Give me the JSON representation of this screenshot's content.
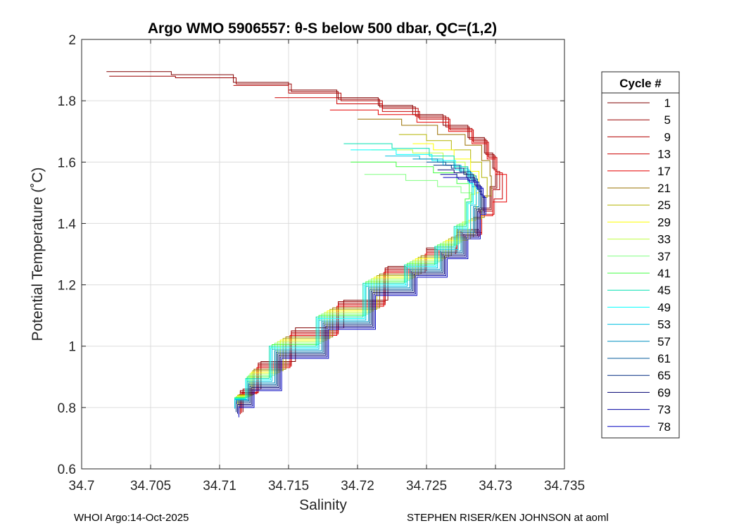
{
  "chart_data": {
    "type": "line",
    "title": "Argo WMO 5906557: θ-S below 500 dbar,  QC=(1,2)",
    "xlabel": "Salinity",
    "ylabel": "Potential Temperature (˚C)",
    "xlim": [
      34.7,
      34.735
    ],
    "ylim": [
      0.6,
      2.0
    ],
    "xticks": [
      "34.7",
      "34.705",
      "34.71",
      "34.715",
      "34.72",
      "34.725",
      "34.73",
      "34.735"
    ],
    "xtick_values": [
      34.7,
      34.705,
      34.71,
      34.715,
      34.72,
      34.725,
      34.73,
      34.735
    ],
    "yticks": [
      "0.6",
      "0.8",
      "1",
      "1.2",
      "1.4",
      "1.6",
      "1.8",
      "2"
    ],
    "ytick_values": [
      0.6,
      0.8,
      1.0,
      1.2,
      1.4,
      1.6,
      1.8,
      2.0
    ],
    "grid": true,
    "legend_title": "Cycle #",
    "legend_position": "right-outside",
    "series": [
      {
        "name": "1",
        "color": "#800000",
        "x": [
          34.7018,
          34.7065,
          34.711,
          34.715,
          34.7185,
          34.7215,
          34.724,
          34.7262,
          34.728,
          34.7292,
          34.7298,
          34.73,
          34.7296,
          34.7288,
          34.7272,
          34.725,
          34.7222,
          34.719,
          34.7155,
          34.713,
          34.7117
        ],
        "y": [
          1.895,
          1.885,
          1.86,
          1.835,
          1.81,
          1.785,
          1.755,
          1.72,
          1.68,
          1.63,
          1.58,
          1.52,
          1.45,
          1.38,
          1.32,
          1.26,
          1.15,
          1.06,
          0.95,
          0.86,
          0.785
        ]
      },
      {
        "name": "5",
        "color": "#9a0000",
        "x": [
          34.702,
          34.7068,
          34.7112,
          34.7152,
          34.7186,
          34.7216,
          34.7242,
          34.7264,
          34.7281,
          34.7293,
          34.7299,
          34.7301,
          34.7297,
          34.7289,
          34.7272,
          34.725,
          34.722,
          34.7186,
          34.7152,
          34.7128,
          34.7115
        ],
        "y": [
          1.88,
          1.875,
          1.855,
          1.83,
          1.805,
          1.78,
          1.75,
          1.715,
          1.675,
          1.625,
          1.575,
          1.515,
          1.445,
          1.375,
          1.315,
          1.255,
          1.145,
          1.05,
          0.945,
          0.855,
          0.78
        ]
      },
      {
        "name": "9",
        "color": "#b30000",
        "x": [
          34.711,
          34.715,
          34.7188,
          34.7218,
          34.7244,
          34.7266,
          34.7283,
          34.7294,
          34.73,
          34.7303,
          34.7298,
          34.729,
          34.7272,
          34.725,
          34.722,
          34.7186,
          34.7152,
          34.7128,
          34.7115
        ],
        "y": [
          1.85,
          1.825,
          1.8,
          1.775,
          1.745,
          1.71,
          1.67,
          1.62,
          1.57,
          1.51,
          1.44,
          1.37,
          1.31,
          1.25,
          1.14,
          1.045,
          0.94,
          0.85,
          0.778
        ]
      },
      {
        "name": "13",
        "color": "#cc0000",
        "x": [
          34.714,
          34.7185,
          34.7218,
          34.7245,
          34.7267,
          34.7284,
          34.7295,
          34.7301,
          34.7305,
          34.7299,
          34.729,
          34.7272,
          34.725,
          34.722,
          34.7186,
          34.7152,
          34.7128,
          34.7116
        ],
        "y": [
          1.81,
          1.79,
          1.765,
          1.74,
          1.705,
          1.665,
          1.615,
          1.565,
          1.48,
          1.43,
          1.365,
          1.305,
          1.245,
          1.135,
          1.04,
          0.935,
          0.848,
          0.782
        ]
      },
      {
        "name": "17",
        "color": "#e60000",
        "x": [
          34.718,
          34.7215,
          34.7243,
          34.7266,
          34.7283,
          34.7294,
          34.73,
          34.7308,
          34.7298,
          34.7289,
          34.7271,
          34.7249,
          34.7219,
          34.7185,
          34.7151,
          34.7127,
          34.7116
        ],
        "y": [
          1.77,
          1.755,
          1.73,
          1.7,
          1.66,
          1.61,
          1.56,
          1.47,
          1.425,
          1.36,
          1.3,
          1.24,
          1.13,
          1.035,
          0.93,
          0.845,
          0.785
        ]
      },
      {
        "name": "21",
        "color": "#9a7000",
        "x": [
          34.72,
          34.7232,
          34.7258,
          34.7278,
          34.729,
          34.7296,
          34.7297,
          34.7292,
          34.7284,
          34.7268,
          34.7246,
          34.7216,
          34.7182,
          34.7148,
          34.7125,
          34.7114
        ],
        "y": [
          1.74,
          1.72,
          1.69,
          1.655,
          1.605,
          1.555,
          1.49,
          1.42,
          1.355,
          1.295,
          1.235,
          1.125,
          1.03,
          0.925,
          0.842,
          0.788
        ]
      },
      {
        "name": "25",
        "color": "#b3b300",
        "x": [
          34.723,
          34.725,
          34.7268,
          34.7282,
          34.729,
          34.7294,
          34.729,
          34.7282,
          34.7266,
          34.7244,
          34.7214,
          34.718,
          34.7146,
          34.7124,
          34.7113
        ],
        "y": [
          1.69,
          1.67,
          1.64,
          1.6,
          1.55,
          1.485,
          1.415,
          1.35,
          1.29,
          1.23,
          1.12,
          1.025,
          0.92,
          0.84,
          0.79
        ]
      },
      {
        "name": "29",
        "color": "#ffff00",
        "x": [
          34.724,
          34.7255,
          34.727,
          34.7282,
          34.7288,
          34.7286,
          34.728,
          34.7264,
          34.7242,
          34.7212,
          34.7178,
          34.7144,
          34.7123,
          34.7113
        ],
        "y": [
          1.66,
          1.64,
          1.61,
          1.57,
          1.5,
          1.41,
          1.345,
          1.285,
          1.225,
          1.115,
          1.02,
          0.915,
          0.838,
          0.792
        ]
      },
      {
        "name": "33",
        "color": "#bfff40",
        "x": [
          34.721,
          34.724,
          34.7262,
          34.7278,
          34.7285,
          34.7282,
          34.7276,
          34.7262,
          34.724,
          34.721,
          34.7176,
          34.7142,
          34.7122,
          34.7112
        ],
        "y": [
          1.64,
          1.63,
          1.6,
          1.56,
          1.495,
          1.405,
          1.34,
          1.28,
          1.22,
          1.11,
          1.015,
          0.91,
          0.836,
          0.795
        ]
      },
      {
        "name": "37",
        "color": "#80ff80",
        "x": [
          34.7205,
          34.7235,
          34.7258,
          34.7275,
          34.7283,
          34.728,
          34.7274,
          34.726,
          34.7238,
          34.7208,
          34.7174,
          34.714,
          34.7121,
          34.7112
        ],
        "y": [
          1.56,
          1.54,
          1.52,
          1.5,
          1.47,
          1.4,
          1.335,
          1.275,
          1.215,
          1.105,
          1.01,
          0.905,
          0.834,
          0.798
        ]
      },
      {
        "name": "41",
        "color": "#40ff40",
        "x": [
          34.7195,
          34.7228,
          34.7255,
          34.7272,
          34.7281,
          34.7278,
          34.7272,
          34.7258,
          34.7236,
          34.7206,
          34.7172,
          34.7138,
          34.712,
          34.7111
        ],
        "y": [
          1.6,
          1.585,
          1.565,
          1.53,
          1.48,
          1.395,
          1.33,
          1.27,
          1.21,
          1.1,
          1.005,
          0.9,
          0.832,
          0.8
        ]
      },
      {
        "name": "45",
        "color": "#00e0b0",
        "x": [
          34.719,
          34.7225,
          34.7252,
          34.727,
          34.728,
          34.7283,
          34.7279,
          34.727,
          34.7256,
          34.7234,
          34.7204,
          34.717,
          34.7136,
          34.7119,
          34.7111
        ],
        "y": [
          1.66,
          1.645,
          1.62,
          1.585,
          1.535,
          1.47,
          1.39,
          1.325,
          1.265,
          1.205,
          1.095,
          1.0,
          0.895,
          0.83,
          0.8
        ]
      },
      {
        "name": "49",
        "color": "#00ffff",
        "x": [
          34.7195,
          34.7228,
          34.7254,
          34.7271,
          34.7281,
          34.7284,
          34.728,
          34.7271,
          34.7257,
          34.7235,
          34.7205,
          34.7171,
          34.7137,
          34.7119,
          34.7111
        ],
        "y": [
          1.64,
          1.625,
          1.605,
          1.575,
          1.53,
          1.465,
          1.385,
          1.32,
          1.26,
          1.2,
          1.09,
          0.995,
          0.89,
          0.828,
          0.798
        ]
      },
      {
        "name": "53",
        "color": "#00c0e0",
        "x": [
          34.722,
          34.7245,
          34.7262,
          34.7275,
          34.7283,
          34.7286,
          34.7282,
          34.7273,
          34.7258,
          34.7236,
          34.7206,
          34.7172,
          34.7138,
          34.712,
          34.7111
        ],
        "y": [
          1.62,
          1.61,
          1.59,
          1.565,
          1.52,
          1.46,
          1.38,
          1.315,
          1.255,
          1.195,
          1.085,
          0.99,
          0.885,
          0.826,
          0.796
        ]
      },
      {
        "name": "57",
        "color": "#0090c0",
        "x": [
          34.724,
          34.7258,
          34.727,
          34.728,
          34.7286,
          34.7288,
          34.7284,
          34.7275,
          34.726,
          34.7238,
          34.7208,
          34.7174,
          34.714,
          34.7121,
          34.7112
        ],
        "y": [
          1.61,
          1.6,
          1.58,
          1.555,
          1.515,
          1.455,
          1.375,
          1.31,
          1.25,
          1.19,
          1.08,
          0.985,
          0.88,
          0.824,
          0.794
        ]
      },
      {
        "name": "61",
        "color": "#005a9a",
        "x": [
          34.725,
          34.7264,
          34.7274,
          34.7282,
          34.7287,
          34.7289,
          34.7285,
          34.7276,
          34.7261,
          34.7239,
          34.7209,
          34.7175,
          34.7141,
          34.7121,
          34.7112
        ],
        "y": [
          1.6,
          1.59,
          1.57,
          1.545,
          1.51,
          1.45,
          1.37,
          1.305,
          1.245,
          1.185,
          1.075,
          0.98,
          0.875,
          0.82,
          0.79
        ]
      },
      {
        "name": "65",
        "color": "#002a80",
        "x": [
          34.7255,
          34.7268,
          34.7277,
          34.7284,
          34.7288,
          34.729,
          34.7286,
          34.7277,
          34.7262,
          34.724,
          34.721,
          34.7176,
          34.7142,
          34.7122,
          34.7112
        ],
        "y": [
          1.59,
          1.58,
          1.56,
          1.535,
          1.505,
          1.445,
          1.365,
          1.3,
          1.24,
          1.18,
          1.07,
          0.975,
          0.87,
          0.815,
          0.785
        ]
      },
      {
        "name": "69",
        "color": "#000070",
        "x": [
          34.7258,
          34.727,
          34.7279,
          34.7285,
          34.7289,
          34.7291,
          34.7287,
          34.7278,
          34.7263,
          34.7241,
          34.7211,
          34.7177,
          34.7143,
          34.7123,
          34.7113
        ],
        "y": [
          1.575,
          1.565,
          1.55,
          1.525,
          1.495,
          1.44,
          1.36,
          1.295,
          1.235,
          1.175,
          1.065,
          0.97,
          0.865,
          0.81,
          0.78
        ]
      },
      {
        "name": "73",
        "color": "#0000a0",
        "x": [
          34.726,
          34.7272,
          34.728,
          34.7286,
          34.729,
          34.7292,
          34.7288,
          34.7279,
          34.7264,
          34.7242,
          34.7212,
          34.7178,
          34.7144,
          34.7124,
          34.7114
        ],
        "y": [
          1.56,
          1.55,
          1.54,
          1.52,
          1.49,
          1.435,
          1.355,
          1.29,
          1.23,
          1.17,
          1.06,
          0.965,
          0.86,
          0.805,
          0.775
        ]
      },
      {
        "name": "78",
        "color": "#0000c0",
        "x": [
          34.7262,
          34.7273,
          34.7281,
          34.7287,
          34.7291,
          34.7293,
          34.7289,
          34.728,
          34.7265,
          34.7243,
          34.7213,
          34.7179,
          34.7145,
          34.7125,
          34.7114
        ],
        "y": [
          1.55,
          1.545,
          1.535,
          1.515,
          1.485,
          1.43,
          1.35,
          1.285,
          1.225,
          1.165,
          1.055,
          0.96,
          0.855,
          0.8,
          0.768
        ]
      }
    ]
  },
  "footer": {
    "left": "WHOI Argo:14-Oct-2025",
    "right": "STEPHEN RISER/KEN JOHNSON at aoml"
  }
}
